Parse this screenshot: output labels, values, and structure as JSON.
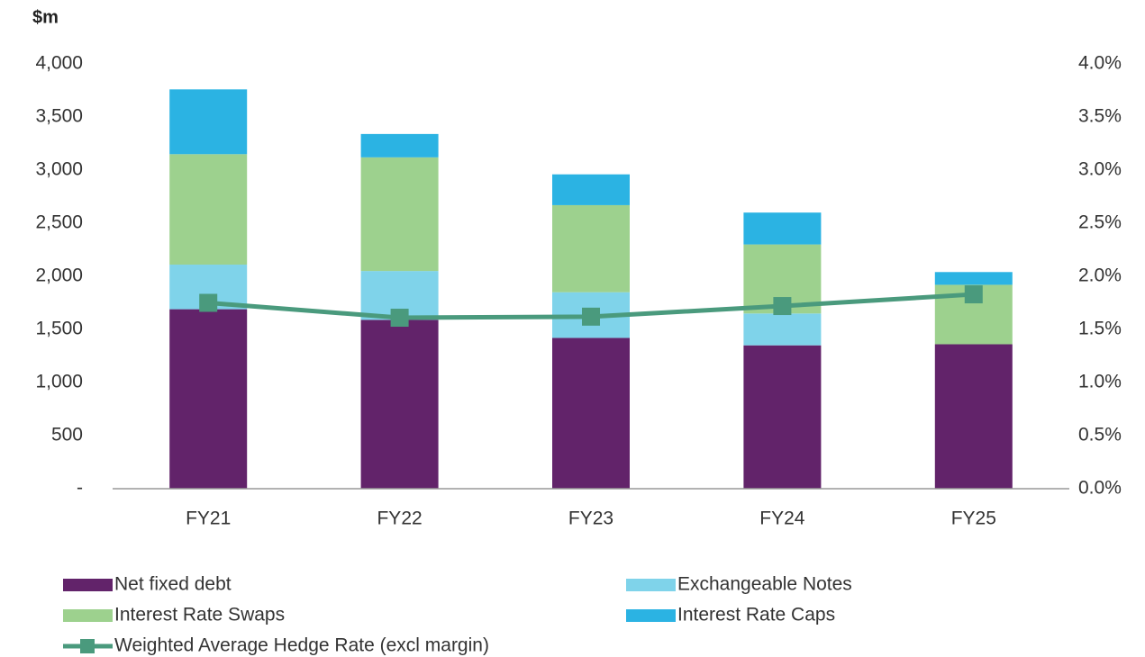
{
  "chart_data": {
    "type": "bar",
    "stacked": true,
    "y_axis_label": "$m",
    "categories": [
      "FY21",
      "FY22",
      "FY23",
      "FY24",
      "FY25"
    ],
    "series": [
      {
        "name": "Net fixed debt",
        "color": "#62236a",
        "values": [
          1690,
          1590,
          1420,
          1350,
          1360
        ]
      },
      {
        "name": "Exchangeable Notes",
        "color": "#7fd3ea",
        "values": [
          420,
          460,
          430,
          300,
          0
        ]
      },
      {
        "name": "Interest Rate Swaps",
        "color": "#9dd18e",
        "values": [
          1040,
          1070,
          820,
          650,
          560
        ]
      },
      {
        "name": "Interest Rate Caps",
        "color": "#2bb3e3",
        "values": [
          610,
          220,
          290,
          300,
          120
        ]
      },
      {
        "name": "Weighted Average Hedge Rate (excl margin)",
        "type": "line",
        "axis": "y2",
        "color": "#4a9a7d",
        "values": [
          1.75,
          1.61,
          1.62,
          1.72,
          1.83
        ]
      }
    ],
    "ylim": [
      0,
      4000
    ],
    "yticks": [
      {
        "value": 0,
        "label": "-"
      },
      500,
      {
        "value": 1000,
        "label": "1,000"
      },
      {
        "value": 1500,
        "label": "1,500"
      },
      {
        "value": 2000,
        "label": "2,000"
      },
      {
        "value": 2500,
        "label": "2,500"
      },
      {
        "value": 3000,
        "label": "3,000"
      },
      {
        "value": 3500,
        "label": "3,500"
      },
      {
        "value": 4000,
        "label": "4,000"
      }
    ],
    "y2lim": [
      0,
      4
    ],
    "y2ticks": [
      {
        "value": 0,
        "label": "0.0%"
      },
      {
        "value": 0.5,
        "label": "0.5%"
      },
      {
        "value": 1,
        "label": "1.0%"
      },
      {
        "value": 1.5,
        "label": "1.5%"
      },
      {
        "value": 2,
        "label": "2.0%"
      },
      {
        "value": 2.5,
        "label": "2.5%"
      },
      {
        "value": 3,
        "label": "3.0%"
      },
      {
        "value": 3.5,
        "label": "3.5%"
      },
      {
        "value": 4,
        "label": "4.0%"
      }
    ],
    "grid": false,
    "legend": "bottom"
  }
}
